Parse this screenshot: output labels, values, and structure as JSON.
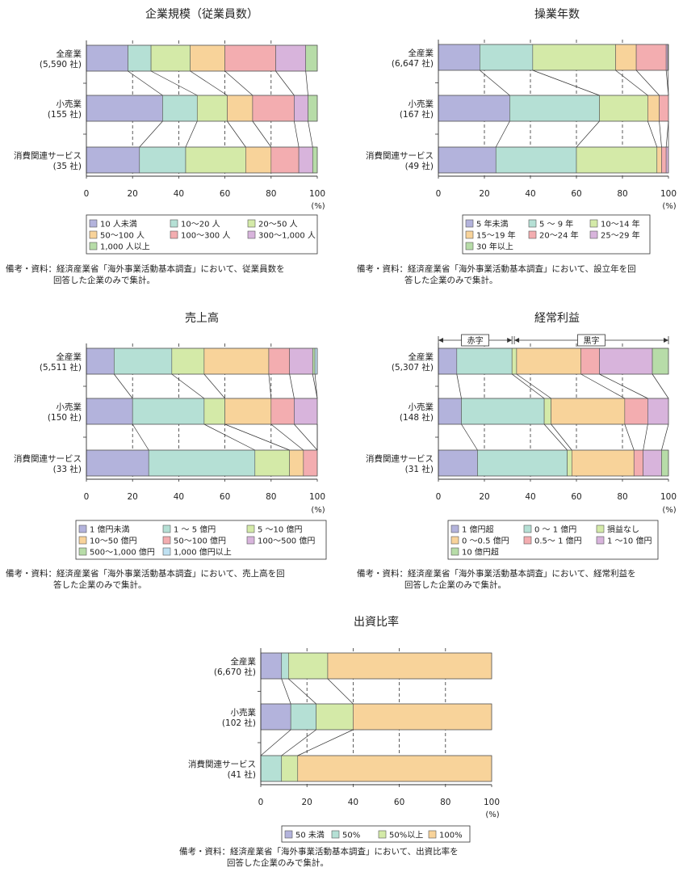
{
  "colors": {
    "palette": [
      "#b3b3dc",
      "#b5e0d5",
      "#d4eaa8",
      "#f8d39a",
      "#f3adb0",
      "#d8b4dc",
      "#b7dca8",
      "#bfe1f2"
    ]
  },
  "chart_data": [
    {
      "type": "bar",
      "orientation": "horizontal-stacked-100",
      "title": "企業規模（従業員数）",
      "categories": [
        "全産業",
        "小売業",
        "消費関連サービス"
      ],
      "category_counts": [
        "(5,590 社)",
        "(155 社)",
        "(35 社)"
      ],
      "x_ticks": [
        "0",
        "20",
        "40",
        "60",
        "80",
        "100"
      ],
      "x_unit": "(%)",
      "xlim": [
        0,
        100
      ],
      "legend_columns": 3,
      "series": [
        {
          "name": "10 人未満",
          "values": [
            18,
            33,
            23
          ]
        },
        {
          "name": "10〜20 人",
          "values": [
            10,
            15,
            20
          ]
        },
        {
          "name": "20〜50 人",
          "values": [
            17,
            13,
            26
          ]
        },
        {
          "name": "50〜100 人",
          "values": [
            15,
            11,
            11
          ]
        },
        {
          "name": "100〜300 人",
          "values": [
            22,
            18,
            12
          ]
        },
        {
          "name": "300〜1,000 人",
          "values": [
            13,
            6,
            6
          ]
        },
        {
          "name": "1,000 人以上",
          "values": [
            5,
            4,
            2
          ]
        }
      ],
      "note": [
        "備考・資料：経済産業省「海外事業活動基本調査」において、従業員数を",
        "回答した企業のみで集計。"
      ]
    },
    {
      "type": "bar",
      "orientation": "horizontal-stacked-100",
      "title": "操業年数",
      "categories": [
        "全産業",
        "小売業",
        "消費関連サービス"
      ],
      "category_counts": [
        "(6,647 社)",
        "(167 社)",
        "(49 社)"
      ],
      "x_ticks": [
        "0",
        "20",
        "40",
        "60",
        "80",
        "100"
      ],
      "x_unit": "(%)",
      "xlim": [
        0,
        100
      ],
      "legend_columns": 3,
      "series": [
        {
          "name": "5 年未満",
          "values": [
            18,
            31,
            25
          ]
        },
        {
          "name": "5 〜 9 年",
          "values": [
            23,
            39,
            35
          ]
        },
        {
          "name": "10〜14 年",
          "values": [
            36,
            21,
            35
          ]
        },
        {
          "name": "15〜19 年",
          "values": [
            9,
            5,
            2
          ]
        },
        {
          "name": "20〜24 年",
          "values": [
            13,
            4,
            2
          ]
        },
        {
          "name": "25〜29 年",
          "values": [
            0.7,
            0,
            1
          ]
        },
        {
          "name": "30 年以上",
          "values": [
            0.3,
            0,
            0
          ]
        }
      ],
      "note": [
        "備考・資料：経済産業省「海外事業活動基本調査」において、設立年を回",
        "答した企業のみで集計。"
      ]
    },
    {
      "type": "bar",
      "orientation": "horizontal-stacked-100",
      "title": "売上高",
      "categories": [
        "全産業",
        "小売業",
        "消費関連サービス"
      ],
      "category_counts": [
        "(5,511 社)",
        "(150 社)",
        "(33 社)"
      ],
      "x_ticks": [
        "0",
        "20",
        "40",
        "60",
        "80",
        "100"
      ],
      "x_unit": "(%)",
      "xlim": [
        0,
        100
      ],
      "legend_columns": 3,
      "series": [
        {
          "name": "1 億円未満",
          "values": [
            12,
            20,
            27
          ]
        },
        {
          "name": "1 〜 5 億円",
          "values": [
            25,
            31,
            46
          ]
        },
        {
          "name": "5 〜10 億円",
          "values": [
            14,
            9,
            15
          ]
        },
        {
          "name": "10〜50 億円",
          "values": [
            28,
            20,
            6
          ]
        },
        {
          "name": "50〜100 億円",
          "values": [
            9,
            10,
            6
          ]
        },
        {
          "name": "100〜500 億円",
          "values": [
            10,
            10,
            0
          ]
        },
        {
          "name": "500〜1,000 億円",
          "values": [
            1,
            0,
            0
          ]
        },
        {
          "name": "1,000 億円以上",
          "values": [
            1,
            0,
            0
          ]
        }
      ],
      "note": [
        "備考・資料：経済産業省「海外事業活動基本調査」において、売上高を回",
        "答した企業のみで集計。"
      ]
    },
    {
      "type": "bar",
      "orientation": "horizontal-stacked-100",
      "title": "経常利益",
      "categories": [
        "全産業",
        "小売業",
        "消費関連サービス"
      ],
      "category_counts": [
        "(5,307 社)",
        "(148 社)",
        "(31 社)"
      ],
      "x_ticks": [
        "0",
        "20",
        "40",
        "60",
        "80",
        "100"
      ],
      "x_unit": "(%)",
      "xlim": [
        0,
        100
      ],
      "legend_columns": 3,
      "brackets": [
        {
          "label": "赤字",
          "from": 0,
          "to": 32
        },
        {
          "label": "黒字",
          "from": 33,
          "to": 100
        }
      ],
      "series": [
        {
          "name": "1 億円超",
          "values": [
            8,
            10,
            17
          ]
        },
        {
          "name": "0 〜 1 億円",
          "values": [
            24,
            36,
            39
          ]
        },
        {
          "name": "損益なし",
          "values": [
            2,
            3,
            2
          ]
        },
        {
          "name": "0 〜0.5 億円",
          "values": [
            28,
            32,
            27
          ]
        },
        {
          "name": "0.5〜 1 億円",
          "values": [
            8,
            10,
            4
          ]
        },
        {
          "name": "1 〜10 億円",
          "values": [
            23,
            9,
            8
          ]
        },
        {
          "name": "10 億円超",
          "values": [
            7,
            0,
            3
          ]
        }
      ],
      "note": [
        "備考・資料：経済産業省「海外事業活動基本調査」において、経常利益を",
        "回答した企業のみで集計。"
      ]
    },
    {
      "type": "bar",
      "orientation": "horizontal-stacked-100",
      "title": "出資比率",
      "categories": [
        "全産業",
        "小売業",
        "消費関連サービス"
      ],
      "category_counts": [
        "(6,670 社)",
        "(102 社)",
        "(41 社)"
      ],
      "x_ticks": [
        "0",
        "20",
        "40",
        "60",
        "80",
        "100"
      ],
      "x_unit": "(%)",
      "xlim": [
        0,
        100
      ],
      "legend_columns": 4,
      "series": [
        {
          "name": "50 未満",
          "values": [
            9,
            13,
            0
          ]
        },
        {
          "name": "50%",
          "values": [
            3,
            11,
            9
          ]
        },
        {
          "name": "50%以上",
          "values": [
            17,
            16,
            7
          ]
        },
        {
          "name": "100%",
          "values": [
            71,
            60,
            84
          ]
        }
      ],
      "note": [
        "備考・資料：経済産業省「海外事業活動基本調査」において、出資比率を",
        "回答した企業のみで集計。"
      ]
    }
  ]
}
